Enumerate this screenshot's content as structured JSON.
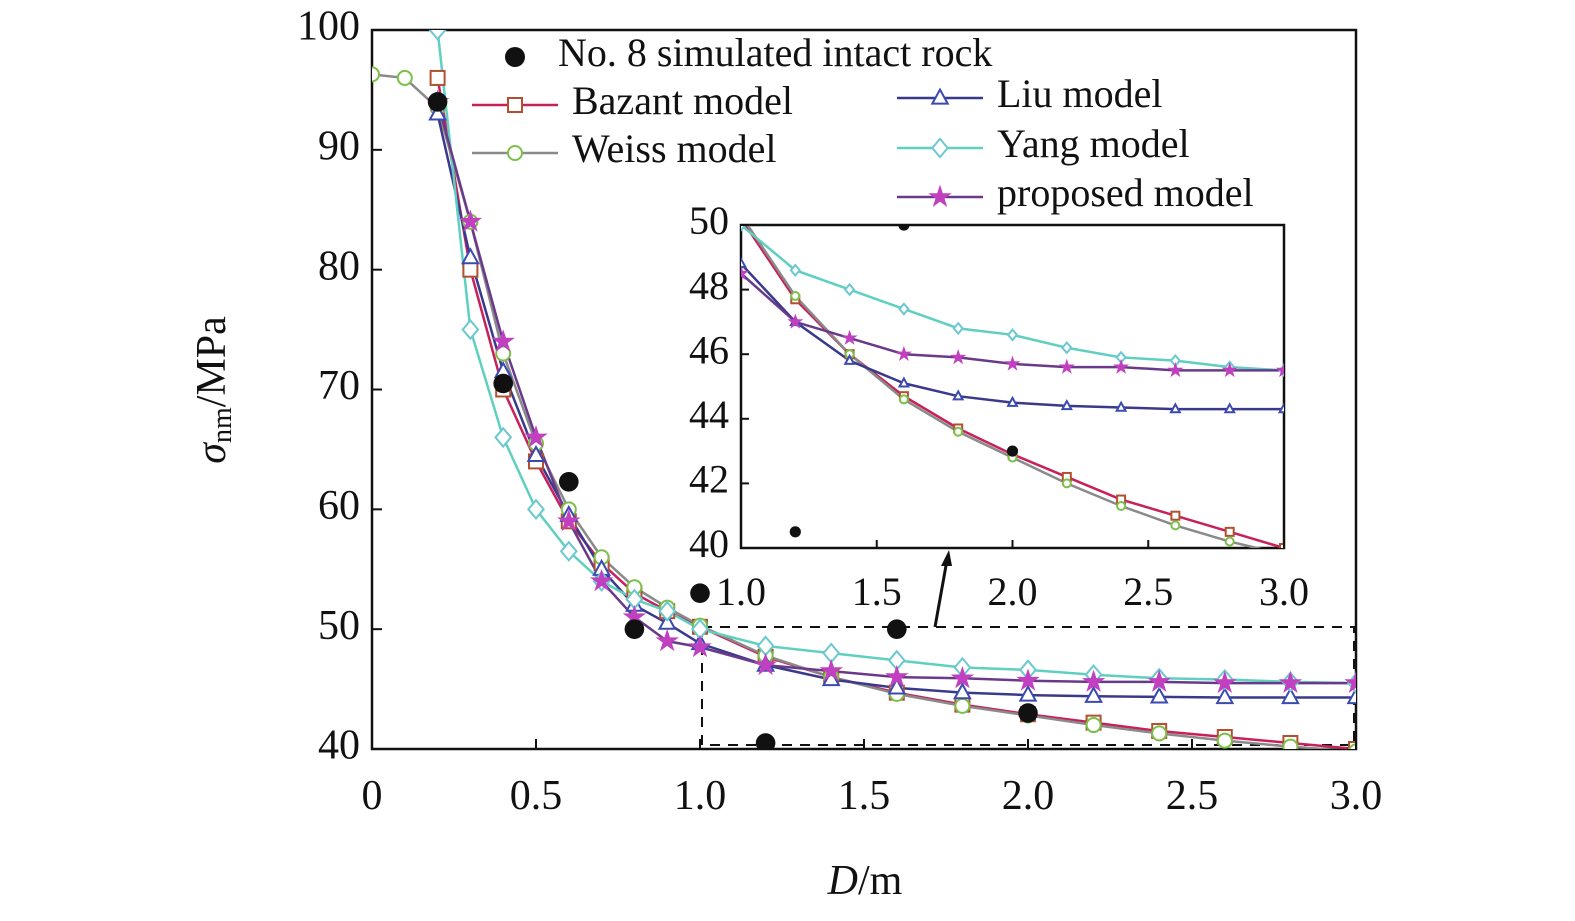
{
  "chart_data": [
    {
      "type": "line",
      "xlabel": {
        "symbol": "D",
        "unit": "/m"
      },
      "ylabel": {
        "symbol": "σ",
        "subscript": "nm",
        "unit": "/MPa"
      },
      "xlim": [
        0,
        3
      ],
      "ylim": [
        40,
        100
      ],
      "xticks": [
        0,
        0.5,
        {
          "value": 1,
          "label": "1.0"
        },
        1.5,
        {
          "value": 2,
          "label": "2.0"
        },
        2.5,
        {
          "value": 3,
          "label": "3.0"
        }
      ],
      "yticks": [
        40,
        50,
        60,
        70,
        80,
        90,
        100
      ],
      "x": [
        0,
        0.1,
        0.2,
        0.3,
        0.4,
        0.5,
        0.6,
        0.7,
        0.8,
        0.9,
        1.0,
        1.2,
        1.4,
        1.6,
        1.8,
        2.0,
        2.2,
        2.4,
        2.6,
        2.8,
        3.0
      ],
      "points": {
        "name": "No. 8 simulated intact rock",
        "color": "#111111",
        "x": [
          0.2,
          0.4,
          0.6,
          0.8,
          1.0,
          1.2,
          1.6,
          2.0
        ],
        "values": [
          94,
          70.5,
          62.3,
          50,
          53,
          40.5,
          50,
          43
        ]
      },
      "series": [
        {
          "name": "Bazant model",
          "color": "#c8205a",
          "marker_color": "#b05030",
          "marker": "square",
          "values": [
            null,
            null,
            96,
            80,
            70,
            64,
            59,
            55.5,
            53,
            51.5,
            50.2,
            47.7,
            46.0,
            44.7,
            43.7,
            42.9,
            42.2,
            41.5,
            41.0,
            40.5,
            40.0
          ]
        },
        {
          "name": "Weiss model",
          "color": "#8a8a8a",
          "marker_color": "#7cc04a",
          "marker": "circle",
          "values": [
            96.3,
            96,
            93.5,
            84,
            73,
            65.5,
            60,
            56,
            53.5,
            51.8,
            50.3,
            47.8,
            46.0,
            44.6,
            43.6,
            42.8,
            42.0,
            41.3,
            40.7,
            40.2,
            39.8
          ]
        },
        {
          "name": "Liu model",
          "color": "#3a3a8c",
          "marker_color": "#3a4ab0",
          "marker": "triangle",
          "values": [
            null,
            null,
            93,
            81,
            71.5,
            64.5,
            59.5,
            55,
            52,
            50.5,
            48.8,
            47,
            45.8,
            45.1,
            44.7,
            44.5,
            44.4,
            44.35,
            44.3,
            44.3,
            44.3
          ]
        },
        {
          "name": "Yang model",
          "color": "#5fd0c0",
          "marker_color": "#6cc8d0",
          "marker": "diamond",
          "values": [
            null,
            null,
            100,
            75,
            66,
            60,
            56.5,
            54,
            52.5,
            51.5,
            50,
            48.6,
            48,
            47.4,
            46.8,
            46.6,
            46.2,
            45.9,
            45.8,
            45.6,
            45.5
          ]
        },
        {
          "name": "proposed model",
          "color": "#6a3a8a",
          "marker_color": "#c040c0",
          "marker": "star",
          "values": [
            null,
            null,
            94,
            84,
            74,
            66,
            59,
            54,
            51,
            49,
            48.5,
            47,
            46.5,
            46.0,
            45.9,
            45.7,
            45.6,
            45.6,
            45.5,
            45.5,
            45.5
          ]
        }
      ]
    },
    {
      "type": "inset",
      "xlim": [
        1,
        3
      ],
      "ylim": [
        40,
        50
      ],
      "xticks": [
        {
          "value": 1,
          "label": "1.0"
        },
        1.5,
        {
          "value": 2,
          "label": "2.0"
        },
        2.5,
        {
          "value": 3,
          "label": "3.0"
        }
      ],
      "yticks": [
        40,
        42,
        44,
        46,
        48,
        50
      ]
    }
  ]
}
